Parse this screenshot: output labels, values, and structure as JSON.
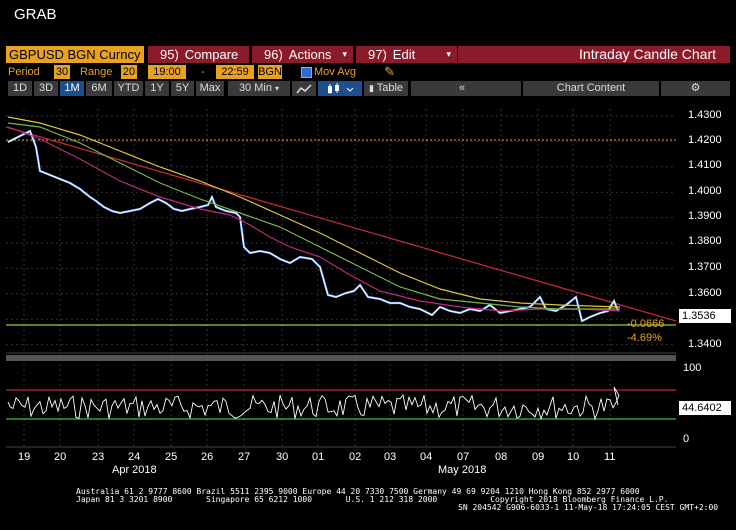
{
  "header": {
    "grab_label": "GRAB"
  },
  "toolbar": {
    "security": "GBPUSD BGN Curncy",
    "compare": {
      "num": "95)",
      "label": "Compare"
    },
    "actions": {
      "num": "96)",
      "label": "Actions"
    },
    "edit": {
      "num": "97)",
      "label": "Edit"
    },
    "title": "Intraday Candle Chart"
  },
  "params": {
    "period_label": "Period",
    "period_value": "30",
    "range_label": "Range",
    "range_value": "20",
    "time_start": "19:00",
    "dash": "-",
    "time_end": "22:59",
    "source": "BGN",
    "mov_avg_label": "Mov Avg"
  },
  "timebar": {
    "ranges": [
      "1D",
      "3D",
      "1M",
      "6M",
      "YTD",
      "1Y",
      "5Y",
      "Max"
    ],
    "selected_range": "1M",
    "interval": "30 Min",
    "table_label": "Table",
    "back_label": "«",
    "chart_content_label": "Chart Content"
  },
  "price_axis": {
    "ticks": [
      "1.4300",
      "1.4200",
      "1.4100",
      "1.4000",
      "1.3900",
      "1.3800",
      "1.3700",
      "1.3600",
      "1.3500",
      "1.3400"
    ],
    "last_value": "1.3536",
    "change_abs": "-0.0666",
    "change_pct": "-4.69%"
  },
  "rsi_axis": {
    "ticks": [
      "100",
      "0"
    ],
    "last_value": "44.6402"
  },
  "x_axis": {
    "day_labels": [
      "19",
      "20",
      "23",
      "24",
      "25",
      "26",
      "27",
      "30",
      "01",
      "02",
      "03",
      "04",
      "07",
      "08",
      "09",
      "10",
      "11"
    ],
    "month_labels": [
      "Apr 2018",
      "May 2018"
    ]
  },
  "footer": {
    "line1": "Australia 61 2 9777 8600 Brazil 5511 2395 9000 Europe 44 20 7330 7500 Germany 49 69 9204 1210 Hong Kong 852 2977 6000",
    "line2": "Japan 81 3 3201 8900       Singapore 65 6212 1000       U.S. 1 212 318 2000           Copyright 2018 Bloomberg Finance L.P.",
    "line3": "SN 204542 G906-6033-1 11-May-18 17:24:05 CEST GMT+2:00"
  },
  "colors": {
    "accent": "#e8a21e",
    "button_red": "#8b1a2a",
    "price_line": "#ffffff",
    "trendline": "#c0283c",
    "ma_fast": "#c0287c",
    "ma_mid": "#7ab34a",
    "ma_slow": "#d8c83a",
    "support": "#8fd43a",
    "rsi_high": "#c0283c",
    "rsi_low": "#3ac040"
  },
  "icons": {
    "pencil": "pencil-icon",
    "gear": "gear-icon",
    "line_chart": "line-chart-icon",
    "candle": "candle-icon",
    "bar_chart": "bar-chart-icon"
  }
}
